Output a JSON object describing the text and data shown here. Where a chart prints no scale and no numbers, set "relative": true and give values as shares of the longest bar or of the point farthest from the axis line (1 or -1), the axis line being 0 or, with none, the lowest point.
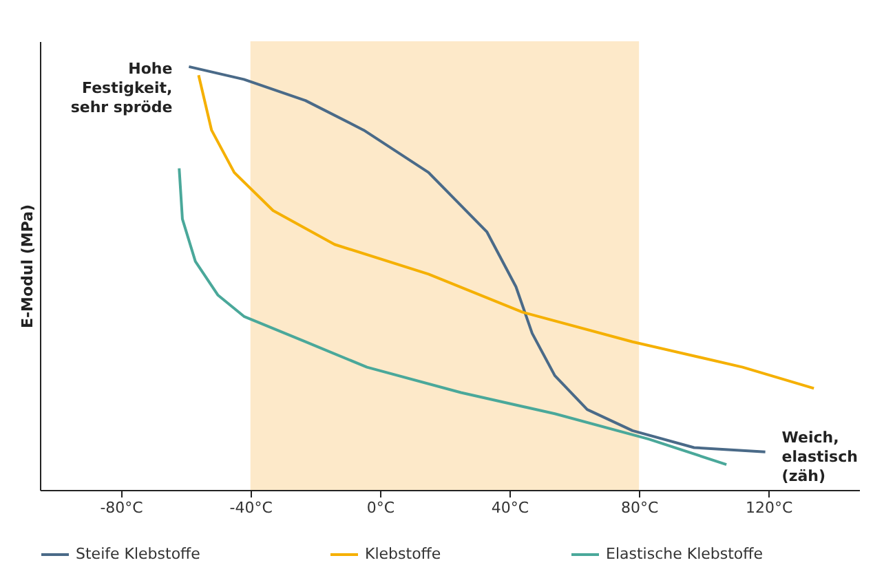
{
  "chart_data": {
    "type": "line",
    "relative": true,
    "ylabel": "E-Modul (MPa)",
    "xlim": [
      -105,
      148
    ],
    "xticks": [
      {
        "value": -80,
        "label": "-80°C"
      },
      {
        "value": -40,
        "label": "-40°C"
      },
      {
        "value": 0,
        "label": "0°C"
      },
      {
        "value": 40,
        "label": "40°C"
      },
      {
        "value": 80,
        "label": "80°C"
      },
      {
        "value": 120,
        "label": "120°C"
      }
    ],
    "series": [
      {
        "name": "Steife Klebstoffe",
        "color": "#4a6a88",
        "x": [
          -59,
          -42,
          -23,
          -5,
          15,
          33,
          42,
          47,
          54,
          64,
          78,
          97,
          119
        ],
        "values": [
          1,
          0.97,
          0.92,
          0.85,
          0.75,
          0.61,
          0.48,
          0.37,
          0.27,
          0.19,
          0.14,
          0.1,
          0.09
        ]
      },
      {
        "name": "Klebstoffe",
        "color": "#f5b000",
        "x": [
          -56,
          -52,
          -45,
          -33,
          -14,
          15,
          44,
          78,
          112,
          134
        ],
        "values": [
          0.98,
          0.85,
          0.75,
          0.66,
          0.58,
          0.51,
          0.42,
          0.35,
          0.29,
          0.24
        ]
      },
      {
        "name": "Elastische Klebstoffe",
        "color": "#4aa89a",
        "x": [
          -62,
          -61,
          -57,
          -50,
          -42,
          -23,
          -4,
          25,
          54,
          83,
          107
        ],
        "values": [
          0.76,
          0.64,
          0.54,
          0.46,
          0.41,
          0.35,
          0.29,
          0.23,
          0.18,
          0.12,
          0.06
        ]
      }
    ],
    "bands": [
      {
        "axis": "x",
        "from": -40,
        "to": 80,
        "color": "#fde9c9"
      }
    ],
    "annotations": [
      {
        "text": "Hohe Festigkeit, sehr spröde",
        "x": -59,
        "y": 1
      },
      {
        "text": "Weich, elastisch (zäh)",
        "x": 119,
        "y": 0.09
      }
    ],
    "grid": false,
    "legend": "bottom",
    "line_style": "solid"
  }
}
